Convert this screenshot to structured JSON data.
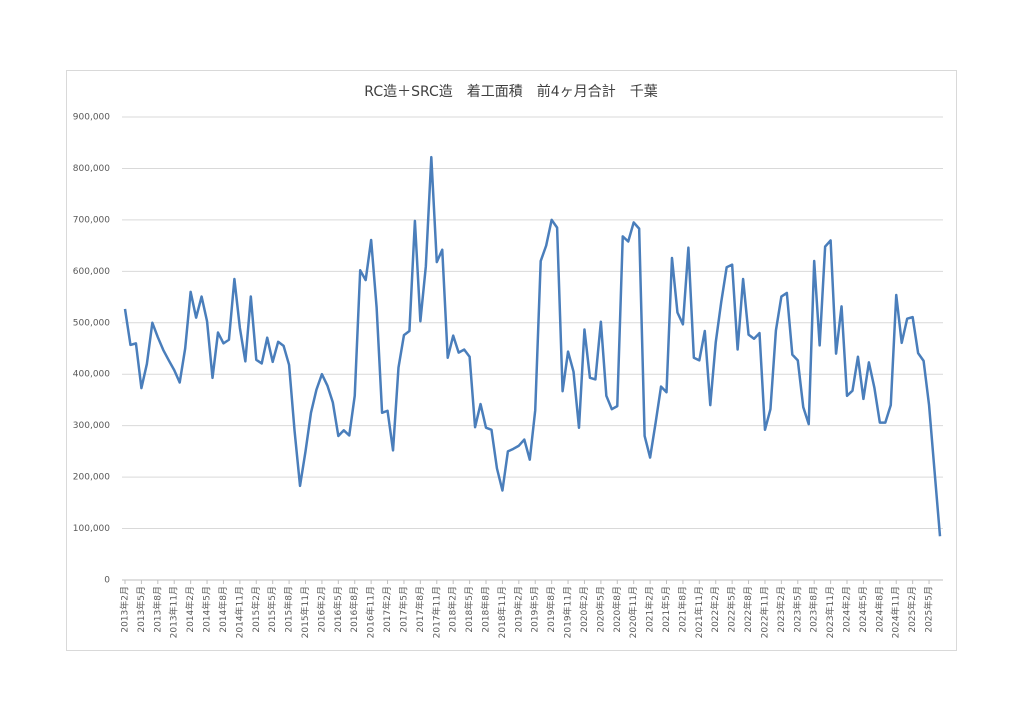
{
  "chart_data": {
    "type": "line",
    "title": "RC造＋SRC造　着工面積　前4ヶ月合計　千葉",
    "categories": [
      "2013年2月",
      null,
      null,
      "2013年5月",
      null,
      null,
      "2013年8月",
      null,
      null,
      "2013年11月",
      null,
      null,
      "2014年2月",
      null,
      null,
      "2014年5月",
      null,
      null,
      "2014年8月",
      null,
      null,
      "2014年11月",
      null,
      null,
      "2015年2月",
      null,
      null,
      "2015年5月",
      null,
      null,
      "2015年8月",
      null,
      null,
      "2015年11月",
      null,
      null,
      "2016年2月",
      null,
      null,
      "2016年5月",
      null,
      null,
      "2016年8月",
      null,
      null,
      "2016年11月",
      null,
      null,
      "2017年2月",
      null,
      null,
      "2017年5月",
      null,
      null,
      "2017年8月",
      null,
      null,
      "2017年11月",
      null,
      null,
      "2018年2月",
      null,
      null,
      "2018年5月",
      null,
      null,
      "2018年8月",
      null,
      null,
      "2018年11月",
      null,
      null,
      "2019年2月",
      null,
      null,
      "2019年5月",
      null,
      null,
      "2019年8月",
      null,
      null,
      "2019年11月",
      null,
      null,
      "2020年2月",
      null,
      null,
      "2020年5月",
      null,
      null,
      "2020年8月",
      null,
      null,
      "2020年11月",
      null,
      null,
      "2021年2月",
      null,
      null,
      "2021年5月",
      null,
      null,
      "2021年8月",
      null,
      null,
      "2021年11月",
      null,
      null,
      "2022年2月",
      null,
      null,
      "2022年5月",
      null,
      null,
      "2022年8月",
      null,
      null,
      "2022年11月",
      null,
      null,
      "2023年2月",
      null,
      null,
      "2023年5月",
      null,
      null,
      "2023年8月",
      null,
      null,
      "2023年11月",
      null,
      null,
      "2024年2月",
      null,
      null,
      "2024年5月",
      null,
      null,
      "2024年8月",
      null,
      null,
      "2024年11月",
      null,
      null,
      "2025年2月",
      null,
      null,
      "2025年5月",
      null,
      null
    ],
    "values": [
      527000,
      457000,
      460000,
      373000,
      420000,
      500000,
      472000,
      447000,
      427000,
      408000,
      384000,
      450000,
      560000,
      510000,
      551000,
      503000,
      393000,
      481000,
      460000,
      467000,
      585000,
      490000,
      425000,
      551000,
      428000,
      421000,
      471000,
      424000,
      463000,
      455000,
      418000,
      290000,
      183000,
      250000,
      325000,
      370000,
      400000,
      378000,
      345000,
      280000,
      291000,
      281000,
      358000,
      602000,
      583000,
      661000,
      530000,
      325000,
      329000,
      252000,
      413000,
      476000,
      484000,
      698000,
      503000,
      610000,
      822000,
      618000,
      642000,
      432000,
      475000,
      442000,
      448000,
      434000,
      297000,
      342000,
      296000,
      292000,
      217000,
      174000,
      250000,
      255000,
      261000,
      273000,
      234000,
      330000,
      620000,
      650000,
      700000,
      685000,
      367000,
      444000,
      405000,
      296000,
      487000,
      393000,
      390000,
      502000,
      358000,
      332000,
      338000,
      668000,
      658000,
      695000,
      683000,
      280000,
      238000,
      305000,
      376000,
      365000,
      626000,
      520000,
      497000,
      646000,
      432000,
      427000,
      484000,
      340000,
      462000,
      540000,
      608000,
      613000,
      448000,
      585000,
      477000,
      469000,
      480000,
      292000,
      332000,
      485000,
      551000,
      558000,
      438000,
      427000,
      336000,
      303000,
      620000,
      456000,
      648000,
      660000,
      440000,
      532000,
      358000,
      368000,
      434000,
      352000,
      423000,
      374000,
      306000,
      306000,
      340000,
      554000,
      461000,
      508000,
      511000,
      441000,
      426000,
      340000,
      212000,
      85000
    ],
    "color": "#4a7ebb",
    "ylim": [
      0,
      900000
    ],
    "yticks": [
      0,
      {
        "value": 100000,
        "label": "100,000"
      },
      {
        "value": 200000,
        "label": "200,000"
      },
      {
        "value": 300000,
        "label": "300,000"
      },
      {
        "value": 400000,
        "label": "400,000"
      },
      {
        "value": 500000,
        "label": "500,000"
      },
      {
        "value": 600000,
        "label": "600,000"
      },
      {
        "value": 700000,
        "label": "700,000"
      },
      {
        "value": 800000,
        "label": "800,000"
      },
      {
        "value": 900000,
        "label": "900,000"
      }
    ],
    "grid": true
  }
}
